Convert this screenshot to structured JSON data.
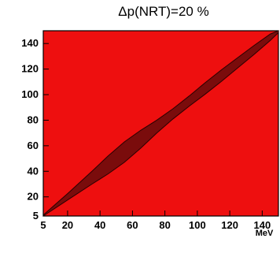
{
  "chart_data": {
    "type": "heatmap",
    "title": "Δp(NRT)=20 %",
    "xlabel": "MeV",
    "ylabel": "",
    "xlim": [
      5,
      150
    ],
    "ylim": [
      5,
      150
    ],
    "x_ticks": [
      5,
      20,
      40,
      60,
      80,
      100,
      120,
      140
    ],
    "y_ticks": [
      5,
      20,
      40,
      60,
      80,
      100,
      120,
      140
    ],
    "x_tick_labels": [
      "5",
      "20",
      "40",
      "60",
      "80",
      "100",
      "120",
      "140"
    ],
    "y_tick_labels": [
      "5",
      "20",
      "40",
      "60",
      "80",
      "100",
      "120",
      "140"
    ],
    "grid": false,
    "background_color": "#ee0f0f",
    "band_color": "#7a0c0c",
    "band": {
      "x": [
        5,
        20,
        35,
        45,
        55,
        65,
        75,
        85,
        95,
        105,
        115,
        125,
        135,
        145,
        150
      ],
      "half_width": [
        0.8,
        2.5,
        5,
        7,
        8,
        7,
        5,
        4,
        4,
        4.5,
        4.5,
        4,
        3.5,
        2.5,
        1.5
      ]
    }
  }
}
